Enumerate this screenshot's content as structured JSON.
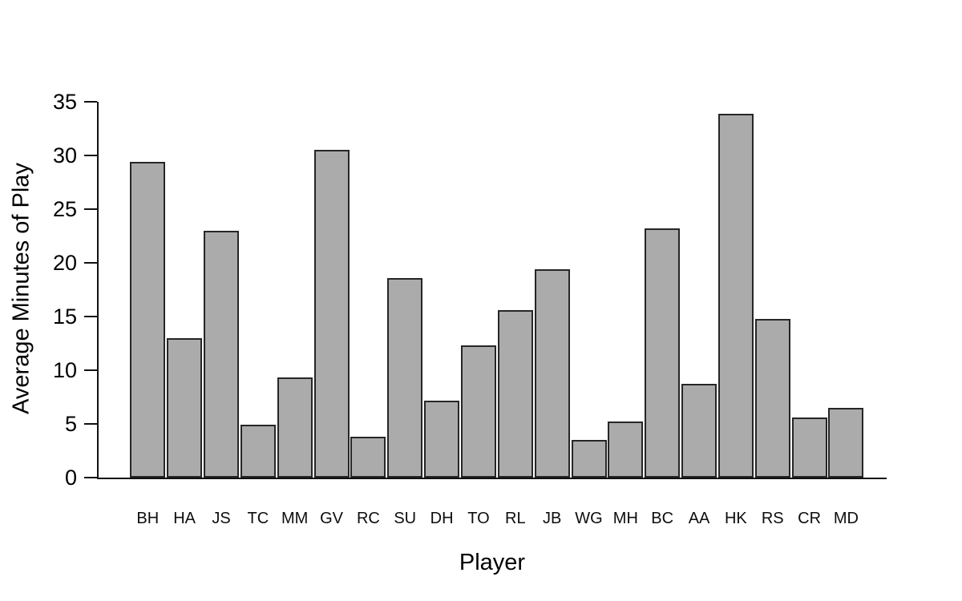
{
  "chart_data": {
    "type": "bar",
    "title": "",
    "xlabel": "Player",
    "ylabel": "Average Minutes of Play",
    "categories": [
      "BH",
      "HA",
      "JS",
      "TC",
      "MM",
      "GV",
      "RC",
      "SU",
      "DH",
      "TO",
      "RL",
      "JB",
      "WG",
      "MH",
      "BC",
      "AA",
      "HK",
      "RS",
      "CR",
      "MD"
    ],
    "values": [
      29.4,
      13.0,
      23.0,
      4.9,
      9.3,
      30.5,
      3.8,
      18.6,
      7.2,
      12.3,
      15.6,
      19.4,
      3.5,
      5.2,
      23.2,
      8.7,
      33.9,
      14.8,
      5.6,
      6.5
    ],
    "ylim": [
      0,
      35
    ],
    "yticks": [
      0,
      5,
      10,
      15,
      20,
      25,
      30,
      35
    ],
    "grid": false,
    "legend": null,
    "colors": {
      "bar_fill": "#ababab",
      "bar_border": "#262626",
      "axis": "#111111",
      "text": "#000000",
      "background": "#ffffff"
    }
  }
}
